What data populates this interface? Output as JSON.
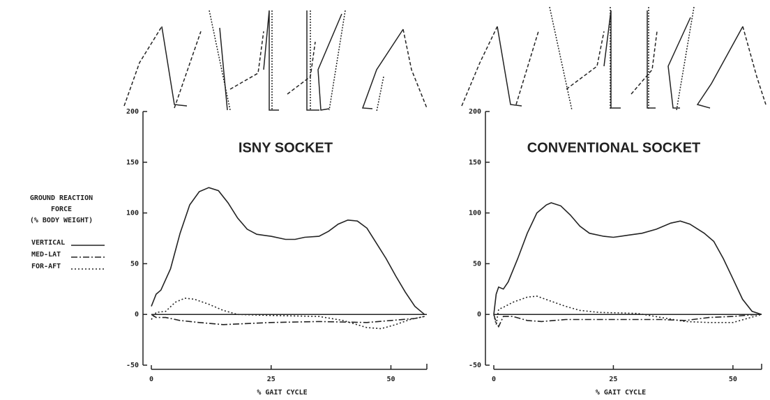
{
  "legend_title": [
    "GROUND REACTION",
    "FORCE",
    "(% BODY WEIGHT)"
  ],
  "chart_data": [
    {
      "type": "line",
      "title": "ISNY SOCKET",
      "xlabel": "% GAIT CYCLE",
      "xlim": [
        0,
        57.5
      ],
      "xticks": [
        0,
        25,
        50
      ],
      "ylim": [
        -50,
        200
      ],
      "yticks": [
        -50,
        0,
        50,
        100,
        150,
        200
      ],
      "series": [
        {
          "name": "VERTICAL",
          "color": "#222222",
          "dash": "none",
          "x": [
            0,
            1,
            2,
            4,
            6,
            8,
            10,
            12,
            14,
            16,
            18,
            20,
            22,
            25,
            28,
            30,
            32,
            35,
            37,
            39,
            41,
            43,
            45,
            47,
            49,
            51,
            53,
            55,
            57
          ],
          "values": [
            8,
            20,
            24,
            45,
            80,
            108,
            121,
            125,
            122,
            110,
            95,
            84,
            79,
            77,
            74,
            74,
            76,
            77,
            82,
            89,
            93,
            92,
            85,
            70,
            55,
            38,
            22,
            8,
            0
          ]
        },
        {
          "name": "MED-LAT",
          "color": "#222222",
          "dash": "9 3 2 3",
          "x": [
            0,
            1,
            3,
            6,
            10,
            15,
            25,
            35,
            45,
            50,
            55,
            57
          ],
          "values": [
            0,
            -3,
            -3,
            -6,
            -8,
            -10,
            -8,
            -7,
            -8,
            -6,
            -4,
            -2
          ]
        },
        {
          "name": "FOR-AFT",
          "color": "#222222",
          "dash": "2 3",
          "x": [
            0,
            1,
            3,
            5,
            7,
            9,
            12,
            15,
            18,
            25,
            35,
            40,
            45,
            48,
            51,
            54,
            57
          ],
          "values": [
            -5,
            2,
            3,
            12,
            16,
            15,
            10,
            4,
            0,
            -1,
            -2,
            -6,
            -13,
            -14,
            -10,
            -5,
            -2
          ]
        }
      ]
    },
    {
      "type": "line",
      "title": "CONVENTIONAL SOCKET",
      "xlabel": "% GAIT CYCLE",
      "xlim": [
        0,
        56
      ],
      "xticks": [
        0,
        25,
        50
      ],
      "ylim": [
        -50,
        200
      ],
      "yticks": [
        -50,
        0,
        50,
        100,
        150,
        200
      ],
      "series": [
        {
          "color": "#222222",
          "dash": "none",
          "x": [
            0,
            0.5,
            1,
            2,
            3,
            5,
            7,
            9,
            11,
            12,
            14,
            16,
            18,
            20,
            23,
            25,
            28,
            31,
            34,
            37,
            39,
            41,
            44,
            46,
            48,
            50,
            52,
            54,
            56
          ],
          "values": [
            0,
            20,
            27,
            25,
            32,
            55,
            80,
            100,
            108,
            110,
            107,
            98,
            87,
            80,
            77,
            76,
            78,
            80,
            84,
            90,
            92,
            89,
            80,
            72,
            55,
            35,
            15,
            3,
            0
          ]
        },
        {
          "color": "#222222",
          "dash": "9 3 2 3",
          "x": [
            0,
            0.5,
            1,
            2,
            4,
            7,
            10,
            15,
            25,
            35,
            40,
            45,
            50,
            55
          ],
          "values": [
            0,
            -8,
            -12,
            -2,
            -2,
            -6,
            -7,
            -5,
            -5,
            -5,
            -6,
            -3,
            -2,
            0
          ]
        },
        {
          "color": "#222222",
          "dash": "2 3",
          "x": [
            0,
            0.5,
            1,
            2,
            4,
            7,
            9,
            12,
            15,
            18,
            22,
            30,
            35,
            40,
            45,
            50,
            53,
            56
          ],
          "values": [
            0,
            -10,
            5,
            7,
            12,
            17,
            18,
            13,
            8,
            4,
            2,
            1,
            -3,
            -7,
            -8,
            -8,
            -4,
            0
          ]
        }
      ]
    }
  ]
}
